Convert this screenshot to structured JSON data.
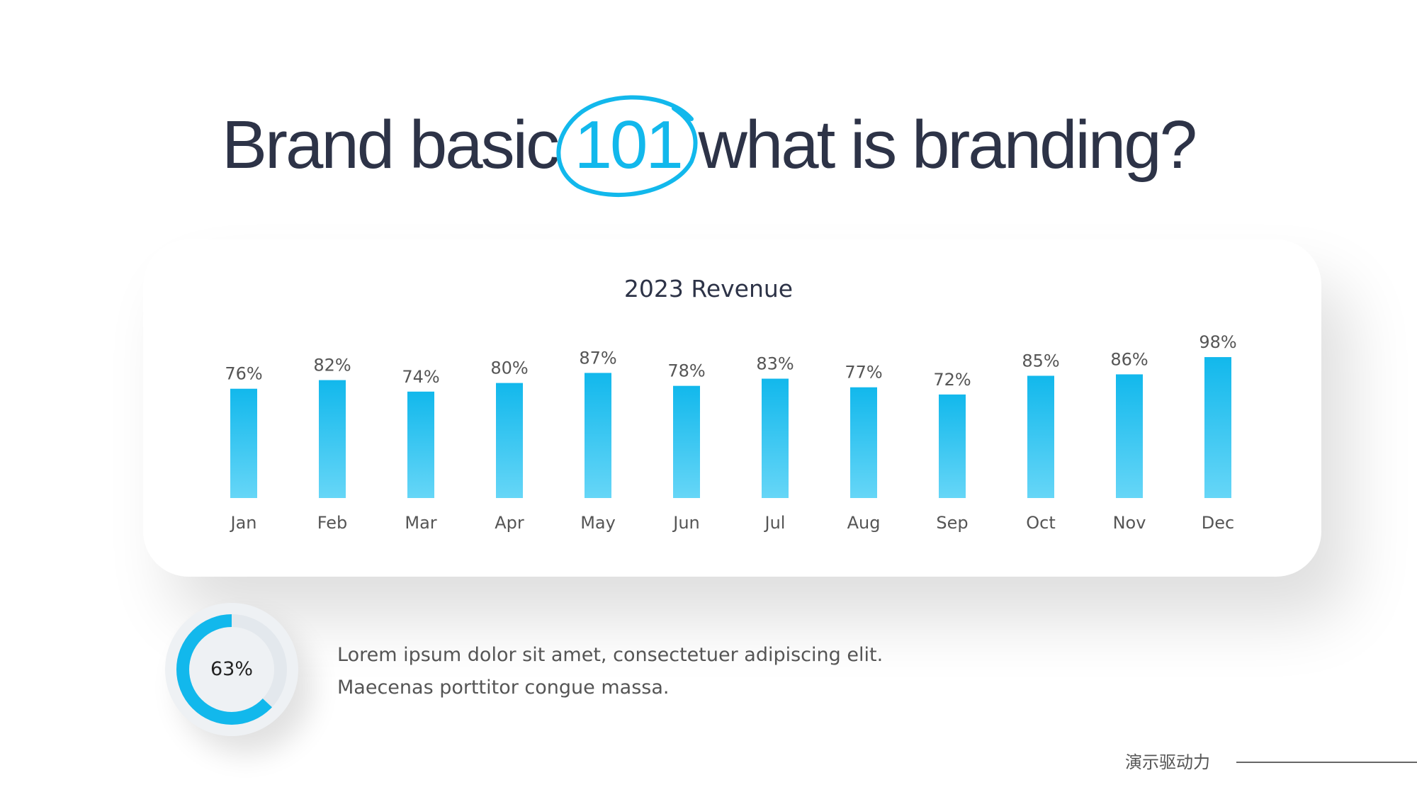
{
  "heading": {
    "before": "Brand basic ",
    "highlight": "101",
    "after": " what is branding?"
  },
  "colors": {
    "accent": "#12b8ec",
    "bar_top": "#12b8ec",
    "bar_bottom": "#66d6f7",
    "text_dark": "#2d3347"
  },
  "chart_data": {
    "type": "bar",
    "title": "2023 Revenue",
    "categories": [
      "Jan",
      "Feb",
      "Mar",
      "Apr",
      "May",
      "Jun",
      "Jul",
      "Aug",
      "Sep",
      "Oct",
      "Nov",
      "Dec"
    ],
    "values": [
      76,
      82,
      74,
      80,
      87,
      78,
      83,
      77,
      72,
      85,
      86,
      98
    ],
    "value_labels": [
      "76%",
      "82%",
      "74%",
      "80%",
      "87%",
      "78%",
      "83%",
      "77%",
      "72%",
      "85%",
      "86%",
      "98%"
    ],
    "ylim": [
      0,
      100
    ],
    "grid": false,
    "axes_visible": false
  },
  "donut": {
    "value": 63,
    "label": "63%",
    "color": "#12b8ec",
    "track_color": "#e3e8ed"
  },
  "description": {
    "line1": "Lorem ipsum dolor sit amet, consectetuer adipiscing elit.",
    "line2": "Maecenas porttitor congue massa."
  },
  "footer": {
    "text": "演示驱动力"
  }
}
